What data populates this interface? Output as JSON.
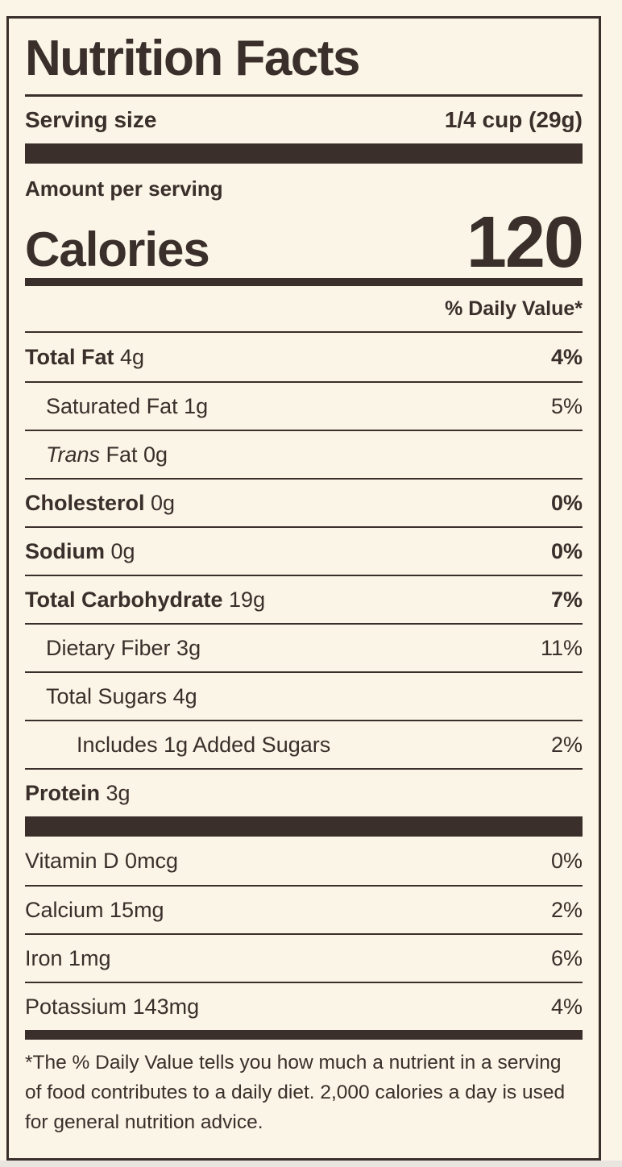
{
  "colors": {
    "ink": "#3a2f2b",
    "background": "#faf5e6",
    "page_bottom": "#e9e6e0"
  },
  "label": {
    "title": "Nutrition Facts",
    "serving": {
      "label": "Serving size",
      "value": "1/4 cup (29g)"
    },
    "amount_per_serving": "Amount per serving",
    "calories": {
      "label": "Calories",
      "value": "120"
    },
    "daily_value_header": "% Daily Value*",
    "nutrients": [
      {
        "name": "Total Fat",
        "amount": "4g",
        "dv": "4%",
        "bold": true,
        "indent": 0
      },
      {
        "name": "Saturated Fat",
        "amount": "1g",
        "dv": "5%",
        "bold": false,
        "indent": 1
      },
      {
        "italic_word": "Trans",
        "name": " Fat",
        "amount": "0g",
        "dv": null,
        "bold": false,
        "indent": 1
      },
      {
        "name": "Cholesterol",
        "amount": "0g",
        "dv": "0%",
        "bold": true,
        "indent": 0
      },
      {
        "name": "Sodium",
        "amount": "0g",
        "dv": "0%",
        "bold": true,
        "indent": 0
      },
      {
        "name": "Total Carbohydrate",
        "amount": "19g",
        "dv": "7%",
        "bold": true,
        "indent": 0
      },
      {
        "name": "Dietary Fiber",
        "amount": "3g",
        "dv": "11%",
        "bold": false,
        "indent": 1
      },
      {
        "name": "Total Sugars",
        "amount": "4g",
        "dv": null,
        "bold": false,
        "indent": 1
      },
      {
        "name": "Includes 1g Added Sugars",
        "amount": null,
        "dv": "2%",
        "bold": false,
        "indent": 2
      },
      {
        "name": "Protein",
        "amount": "3g",
        "dv": null,
        "bold": true,
        "indent": 0
      }
    ],
    "vitamins": [
      {
        "name": "Vitamin D",
        "amount": "0mcg",
        "dv": "0%",
        "bold": false,
        "indent": 0
      },
      {
        "name": "Calcium",
        "amount": "15mg",
        "dv": "2%",
        "bold": false,
        "indent": 0
      },
      {
        "name": "Iron",
        "amount": "1mg",
        "dv": "6%",
        "bold": false,
        "indent": 0
      },
      {
        "name": "Potassium",
        "amount": "143mg",
        "dv": "4%",
        "bold": false,
        "indent": 0
      }
    ],
    "footnote": "*The % Daily Value tells you how much a nutrient in a serving of food contributes to a daily diet. 2,000 calories a day is used for general nutrition advice."
  }
}
